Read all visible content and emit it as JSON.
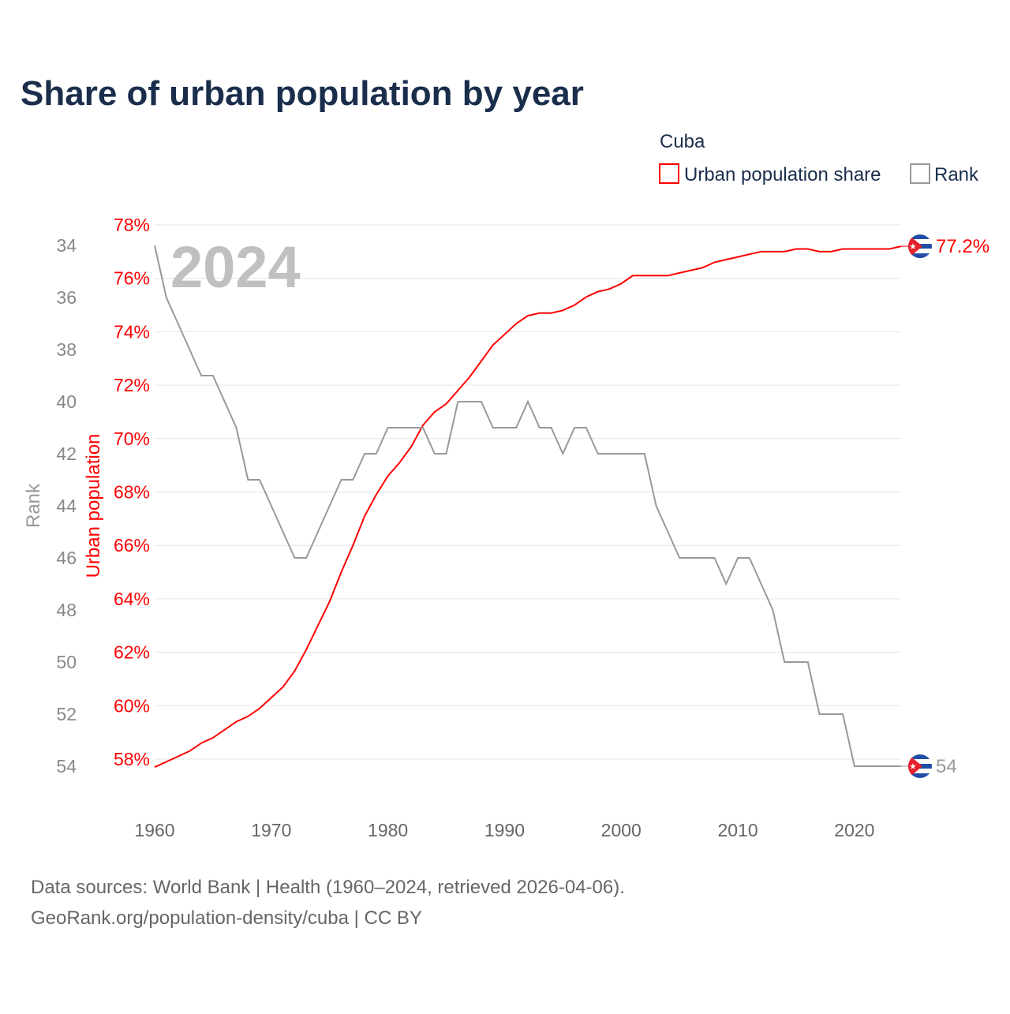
{
  "chart_data": {
    "type": "line",
    "title": "Share of urban population by year",
    "legend": {
      "title": "Cuba",
      "placement": "top-right",
      "entries": [
        {
          "label": "Urban population share",
          "color": "#ff0000"
        },
        {
          "label": "Rank",
          "color": "#999999"
        }
      ]
    },
    "watermark_year": "2024",
    "xlabel": "",
    "x_ticks": [
      "1960",
      "1970",
      "1980",
      "1990",
      "2000",
      "2010",
      "2020"
    ],
    "xlim": [
      1960,
      2024
    ],
    "y_left": {
      "label": "Urban population",
      "ticks": [
        "58%",
        "60%",
        "62%",
        "64%",
        "66%",
        "68%",
        "70%",
        "72%",
        "74%",
        "76%",
        "78%"
      ],
      "ylim": [
        58,
        78
      ],
      "color": "#ff0000"
    },
    "y_rank": {
      "label": "Rank",
      "ticks": [
        "34",
        "36",
        "38",
        "40",
        "42",
        "44",
        "46",
        "48",
        "50",
        "52",
        "54"
      ],
      "ylim": [
        34,
        54
      ],
      "inverted": true,
      "color": "#999999"
    },
    "grid": true,
    "x": [
      1960,
      1961,
      1962,
      1963,
      1964,
      1965,
      1966,
      1967,
      1968,
      1969,
      1970,
      1971,
      1972,
      1973,
      1974,
      1975,
      1976,
      1977,
      1978,
      1979,
      1980,
      1981,
      1982,
      1983,
      1984,
      1985,
      1986,
      1987,
      1988,
      1989,
      1990,
      1991,
      1992,
      1993,
      1994,
      1995,
      1996,
      1997,
      1998,
      1999,
      2000,
      2001,
      2002,
      2003,
      2004,
      2005,
      2006,
      2007,
      2008,
      2009,
      2010,
      2011,
      2012,
      2013,
      2014,
      2015,
      2016,
      2017,
      2018,
      2019,
      2020,
      2021,
      2022,
      2023,
      2024
    ],
    "series": [
      {
        "name": "Urban population share",
        "unit": "%",
        "values": [
          57.7,
          57.9,
          58.1,
          58.3,
          58.6,
          58.8,
          59.1,
          59.4,
          59.6,
          59.9,
          60.3,
          60.7,
          61.3,
          62.1,
          63.0,
          63.9,
          65.0,
          66.0,
          67.1,
          67.9,
          68.6,
          69.1,
          69.7,
          70.5,
          71.0,
          71.3,
          71.8,
          72.3,
          72.9,
          73.5,
          73.9,
          74.3,
          74.6,
          74.7,
          74.7,
          74.8,
          75.0,
          75.3,
          75.5,
          75.6,
          75.8,
          76.1,
          76.1,
          76.1,
          76.1,
          76.2,
          76.3,
          76.4,
          76.6,
          76.7,
          76.8,
          76.9,
          77.0,
          77.0,
          77.0,
          77.1,
          77.1,
          77.0,
          77.0,
          77.1,
          77.1,
          77.1,
          77.1,
          77.1,
          77.2
        ],
        "end_label": "77.2%"
      },
      {
        "name": "Rank",
        "values": [
          34,
          36,
          37,
          38,
          39,
          39,
          40,
          41,
          43,
          43,
          44,
          45,
          46,
          46,
          45,
          44,
          43,
          43,
          42,
          42,
          41,
          41,
          41,
          41,
          42,
          42,
          40,
          40,
          40,
          41,
          41,
          41,
          40,
          41,
          41,
          42,
          41,
          41,
          42,
          42,
          42,
          42,
          42,
          44,
          45,
          46,
          46,
          46,
          46,
          47,
          46,
          46,
          47,
          48,
          50,
          50,
          50,
          52,
          52,
          52,
          54,
          54,
          54,
          54,
          54
        ],
        "end_label": "54"
      }
    ]
  },
  "footer": {
    "line1": "Data sources: World Bank | Health (1960–2024, retrieved 2026-04-06).",
    "line2": "GeoRank.org/population-density/cuba | CC BY"
  }
}
